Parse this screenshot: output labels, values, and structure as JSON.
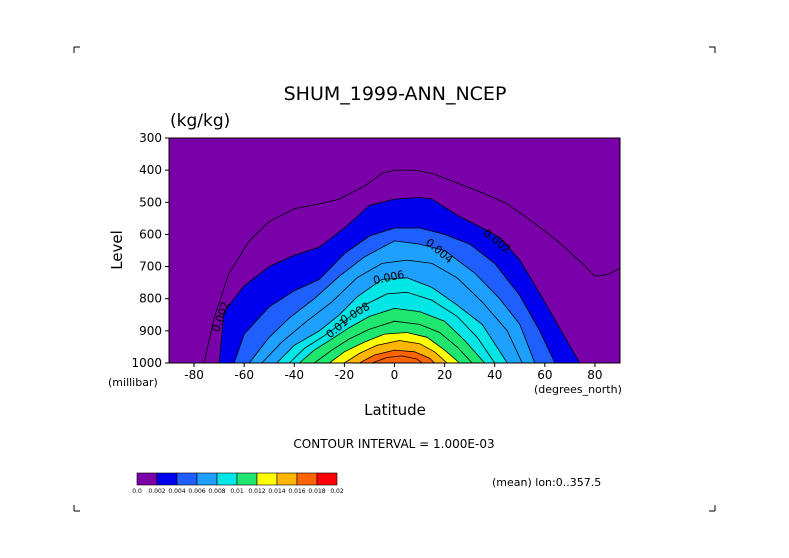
{
  "chart_data": {
    "type": "contour",
    "title": "SHUM_1999-ANN_NCEP",
    "units": "(kg/kg)",
    "xlabel": "Latitude",
    "ylabel": "Level",
    "x_unit_label": "(degrees_north)",
    "y_unit_label": "(millibar)",
    "xlim": [
      -90,
      90
    ],
    "ylim": [
      1000,
      300
    ],
    "x_ticks": [
      -80,
      -60,
      -40,
      -20,
      0,
      20,
      40,
      60,
      80
    ],
    "y_ticks": [
      300,
      400,
      500,
      600,
      700,
      800,
      900,
      1000
    ],
    "contour_interval_text": "CONTOUR INTERVAL = 1.000E-03",
    "info_text": "(mean) lon:0..357.5",
    "contour_labels": [
      "0.002",
      "0.002",
      "0.004",
      "0.006",
      "0.008",
      "0.01"
    ],
    "colorbar": {
      "labels": [
        "0.0",
        "0.002",
        "0.004",
        "0.006",
        "0.008",
        "0.01",
        "0.012",
        "0.014",
        "0.016",
        "0.018",
        "0.02"
      ],
      "colors": [
        "#7a00aa",
        "#0000ee",
        "#1f5fff",
        "#1ea0ff",
        "#00e6e6",
        "#1ee66e",
        "#ffff00",
        "#ffb400",
        "#ff6400",
        "#ff0000"
      ]
    },
    "levels_data": [
      {
        "level": 0.0,
        "color": "#7a00aa",
        "boundary": [
          [
            -90,
            1000
          ],
          [
            -90,
            300
          ],
          [
            90,
            300
          ],
          [
            90,
            1000
          ]
        ]
      },
      {
        "level": 0.002,
        "color": "#0000ee",
        "boundary": [
          [
            -70,
            1000
          ],
          [
            -68,
            840
          ],
          [
            -60,
            760
          ],
          [
            -50,
            700
          ],
          [
            -40,
            665
          ],
          [
            -30,
            640
          ],
          [
            -20,
            580
          ],
          [
            -10,
            510
          ],
          [
            0,
            490
          ],
          [
            10,
            485
          ],
          [
            15,
            490
          ],
          [
            25,
            540
          ],
          [
            35,
            580
          ],
          [
            42,
            610
          ],
          [
            50,
            680
          ],
          [
            60,
            810
          ],
          [
            68,
            920
          ],
          [
            74,
            1000
          ]
        ]
      },
      {
        "level": 0.003,
        "color": "#1f5fff",
        "boundary": [
          [
            -64,
            1000
          ],
          [
            -60,
            910
          ],
          [
            -50,
            825
          ],
          [
            -40,
            775
          ],
          [
            -30,
            740
          ],
          [
            -20,
            660
          ],
          [
            -10,
            605
          ],
          [
            0,
            580
          ],
          [
            10,
            580
          ],
          [
            20,
            600
          ],
          [
            30,
            630
          ],
          [
            40,
            690
          ],
          [
            50,
            790
          ],
          [
            58,
            900
          ],
          [
            64,
            1000
          ]
        ]
      },
      {
        "level": 0.004,
        "color": "#1ea0ff",
        "boundary": [
          [
            -58,
            1000
          ],
          [
            -50,
            920
          ],
          [
            -42,
            860
          ],
          [
            -32,
            800
          ],
          [
            -22,
            730
          ],
          [
            -12,
            670
          ],
          [
            0,
            620
          ],
          [
            10,
            630
          ],
          [
            20,
            650
          ],
          [
            32,
            720
          ],
          [
            42,
            800
          ],
          [
            50,
            880
          ],
          [
            56,
            1000
          ]
        ]
      },
      {
        "level": 0.005,
        "color": "#1ea0ff",
        "boundary": [
          [
            -53,
            1000
          ],
          [
            -45,
            935
          ],
          [
            -35,
            870
          ],
          [
            -25,
            810
          ],
          [
            -15,
            735
          ],
          [
            -5,
            690
          ],
          [
            5,
            680
          ],
          [
            15,
            690
          ],
          [
            25,
            735
          ],
          [
            35,
            810
          ],
          [
            45,
            900
          ],
          [
            51,
            1000
          ]
        ]
      },
      {
        "level": 0.006,
        "color": "#00e6e6",
        "boundary": [
          [
            -47,
            1000
          ],
          [
            -40,
            945
          ],
          [
            -30,
            900
          ],
          [
            -22,
            850
          ],
          [
            -15,
            795
          ],
          [
            -5,
            740
          ],
          [
            5,
            735
          ],
          [
            15,
            765
          ],
          [
            25,
            820
          ],
          [
            35,
            880
          ],
          [
            45,
            1000
          ]
        ]
      },
      {
        "level": 0.007,
        "color": "#00e6e6",
        "boundary": [
          [
            -42,
            1000
          ],
          [
            -36,
            955
          ],
          [
            -28,
            915
          ],
          [
            -20,
            870
          ],
          [
            -12,
            820
          ],
          [
            -3,
            785
          ],
          [
            5,
            780
          ],
          [
            15,
            805
          ],
          [
            25,
            855
          ],
          [
            33,
            920
          ],
          [
            40,
            1000
          ]
        ]
      },
      {
        "level": 0.008,
        "color": "#1ee66e",
        "boundary": [
          [
            -38,
            1000
          ],
          [
            -32,
            960
          ],
          [
            -25,
            925
          ],
          [
            -18,
            890
          ],
          [
            -10,
            855
          ],
          [
            0,
            830
          ],
          [
            10,
            840
          ],
          [
            20,
            870
          ],
          [
            28,
            930
          ],
          [
            36,
            1000
          ]
        ]
      },
      {
        "level": 0.01,
        "color": "#1ee66e",
        "boundary": [
          [
            -32,
            1000
          ],
          [
            -25,
            960
          ],
          [
            -18,
            925
          ],
          [
            -10,
            895
          ],
          [
            0,
            870
          ],
          [
            10,
            880
          ],
          [
            18,
            905
          ],
          [
            25,
            950
          ],
          [
            31,
            1000
          ]
        ]
      },
      {
        "level": 0.012,
        "color": "#ffff00",
        "boundary": [
          [
            -26,
            1000
          ],
          [
            -20,
            965
          ],
          [
            -12,
            935
          ],
          [
            -4,
            910
          ],
          [
            5,
            905
          ],
          [
            13,
            920
          ],
          [
            20,
            960
          ],
          [
            26,
            1000
          ]
        ]
      },
      {
        "level": 0.014,
        "color": "#ffb400",
        "boundary": [
          [
            -20,
            1000
          ],
          [
            -14,
            970
          ],
          [
            -7,
            945
          ],
          [
            2,
            930
          ],
          [
            10,
            940
          ],
          [
            16,
            965
          ],
          [
            21,
            1000
          ]
        ]
      },
      {
        "level": 0.016,
        "color": "#ff6400",
        "boundary": [
          [
            -14,
            1000
          ],
          [
            -8,
            975
          ],
          [
            0,
            960
          ],
          [
            8,
            965
          ],
          [
            14,
            985
          ],
          [
            16,
            1000
          ]
        ]
      },
      {
        "level": 0.018,
        "color": "#ff6400",
        "boundary": [
          [
            -9,
            1000
          ],
          [
            -3,
            983
          ],
          [
            3,
            978
          ],
          [
            9,
            988
          ],
          [
            11,
            1000
          ]
        ]
      }
    ],
    "outer_contour_0001": [
      [
        -76,
        1000
      ],
      [
        -72,
        860
      ],
      [
        -66,
        720
      ],
      [
        -58,
        620
      ],
      [
        -50,
        560
      ],
      [
        -40,
        520
      ],
      [
        -30,
        505
      ],
      [
        -22,
        490
      ],
      [
        -12,
        450
      ],
      [
        -5,
        410
      ],
      [
        0,
        400
      ],
      [
        8,
        400
      ],
      [
        15,
        410
      ],
      [
        25,
        440
      ],
      [
        35,
        470
      ],
      [
        45,
        505
      ],
      [
        55,
        560
      ],
      [
        65,
        620
      ],
      [
        75,
        690
      ],
      [
        80,
        730
      ],
      [
        85,
        725
      ],
      [
        90,
        705
      ]
    ]
  }
}
